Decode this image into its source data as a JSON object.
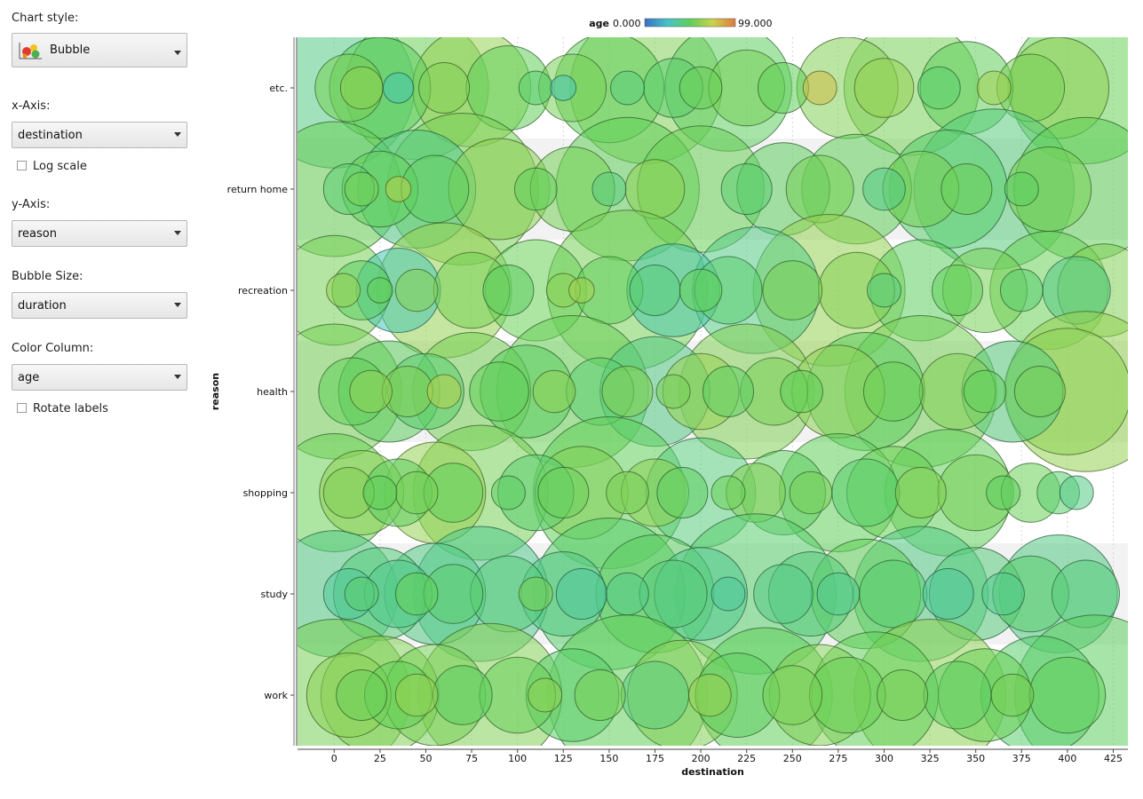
{
  "sidebar": {
    "chart_style_label": "Chart style:",
    "chart_style_value": "Bubble",
    "chart_style_icon": "bubble-chart-icon",
    "x_axis_label": "x-Axis:",
    "x_axis_value": "destination",
    "log_scale_label": "Log scale",
    "log_scale_checked": false,
    "y_axis_label": "y-Axis:",
    "y_axis_value": "reason",
    "bubble_size_label": "Bubble Size:",
    "bubble_size_value": "duration",
    "color_column_label": "Color Column:",
    "color_column_value": "age",
    "rotate_labels_label": "Rotate labels",
    "rotate_labels_checked": false
  },
  "chart_data": {
    "type": "scatter",
    "subtype": "bubble",
    "xlabel": "destination",
    "ylabel": "reason",
    "x_ticks": [
      0,
      25,
      50,
      75,
      100,
      125,
      150,
      175,
      200,
      225,
      250,
      275,
      300,
      325,
      350,
      375,
      400,
      425
    ],
    "xlim": [
      -20,
      433
    ],
    "y_categories": [
      "etc.",
      "return home",
      "recreation",
      "health",
      "shopping",
      "study",
      "work"
    ],
    "color_legend": {
      "column": "age",
      "min_label": "0.000",
      "max_label": "99.000",
      "colors": [
        "#3b6fc4",
        "#43c4c9",
        "#5fcf5a",
        "#c9d34a",
        "#e07a3f"
      ]
    },
    "series": [
      {
        "name": "etc.",
        "x": [
          0,
          8,
          15,
          25,
          35,
          45,
          60,
          75,
          95,
          110,
          125,
          130,
          150,
          160,
          170,
          185,
          200,
          215,
          225,
          245,
          265,
          280,
          300,
          315,
          330,
          345,
          360,
          380,
          395,
          410
        ],
        "size": [
          95,
          40,
          25,
          60,
          18,
          85,
          30,
          70,
          50,
          20,
          15,
          40,
          65,
          20,
          90,
          35,
          25,
          75,
          45,
          30,
          20,
          60,
          35,
          80,
          25,
          55,
          20,
          40,
          60,
          90
        ],
        "age": [
          40,
          55,
          60,
          48,
          30,
          52,
          58,
          62,
          50,
          45,
          30,
          55,
          50,
          42,
          58,
          45,
          52,
          48,
          55,
          50,
          80,
          58,
          62,
          55,
          45,
          50,
          65,
          55,
          60,
          52
        ]
      },
      {
        "name": "return home",
        "x": [
          0,
          8,
          15,
          25,
          35,
          45,
          55,
          70,
          90,
          110,
          130,
          150,
          160,
          175,
          200,
          225,
          245,
          265,
          285,
          300,
          320,
          335,
          345,
          360,
          375,
          390,
          410
        ],
        "size": [
          80,
          30,
          20,
          45,
          15,
          70,
          40,
          90,
          60,
          25,
          50,
          20,
          85,
          35,
          75,
          30,
          55,
          40,
          65,
          25,
          45,
          70,
          30,
          95,
          20,
          50,
          85
        ],
        "age": [
          52,
          45,
          55,
          50,
          70,
          40,
          48,
          55,
          60,
          50,
          55,
          42,
          50,
          60,
          52,
          45,
          48,
          55,
          50,
          40,
          55,
          45,
          52,
          42,
          48,
          55,
          50
        ]
      },
      {
        "name": "recreation",
        "x": [
          0,
          5,
          15,
          25,
          35,
          45,
          60,
          75,
          95,
          110,
          125,
          135,
          150,
          160,
          175,
          185,
          200,
          215,
          230,
          250,
          270,
          285,
          300,
          320,
          340,
          355,
          375,
          390,
          405,
          420
        ],
        "size": [
          65,
          20,
          35,
          15,
          50,
          25,
          80,
          45,
          30,
          60,
          20,
          15,
          40,
          95,
          30,
          55,
          25,
          40,
          75,
          35,
          90,
          45,
          20,
          60,
          30,
          50,
          25,
          70,
          40,
          55
        ],
        "age": [
          55,
          62,
          48,
          50,
          30,
          58,
          62,
          55,
          48,
          52,
          60,
          65,
          50,
          55,
          42,
          32,
          50,
          45,
          40,
          55,
          62,
          58,
          42,
          48,
          50,
          55,
          45,
          52,
          40,
          58
        ]
      },
      {
        "name": "health",
        "x": [
          0,
          10,
          20,
          30,
          40,
          50,
          60,
          75,
          90,
          105,
          120,
          130,
          145,
          160,
          175,
          185,
          200,
          215,
          225,
          240,
          255,
          275,
          290,
          305,
          320,
          340,
          355,
          370,
          385,
          400,
          410
        ],
        "size": [
          80,
          40,
          25,
          60,
          30,
          45,
          20,
          70,
          35,
          55,
          25,
          90,
          40,
          30,
          65,
          20,
          45,
          30,
          80,
          40,
          25,
          55,
          70,
          35,
          90,
          45,
          25,
          60,
          30,
          75,
          95
        ],
        "age": [
          55,
          50,
          60,
          48,
          58,
          45,
          70,
          55,
          50,
          48,
          60,
          52,
          45,
          58,
          40,
          55,
          62,
          48,
          58,
          55,
          50,
          60,
          48,
          52,
          55,
          58,
          50,
          42,
          55,
          60,
          62
        ]
      },
      {
        "name": "shopping",
        "x": [
          0,
          8,
          15,
          25,
          35,
          45,
          55,
          65,
          80,
          95,
          110,
          125,
          135,
          150,
          160,
          175,
          190,
          200,
          215,
          230,
          245,
          260,
          275,
          290,
          305,
          320,
          335,
          350,
          365,
          380,
          395,
          405
        ],
        "size": [
          70,
          30,
          50,
          20,
          40,
          25,
          60,
          35,
          80,
          20,
          45,
          30,
          55,
          90,
          25,
          40,
          30,
          65,
          20,
          35,
          50,
          25,
          70,
          40,
          55,
          30,
          75,
          45,
          20,
          35,
          25,
          20
        ],
        "age": [
          52,
          58,
          60,
          50,
          48,
          55,
          62,
          50,
          55,
          48,
          45,
          52,
          58,
          50,
          55,
          60,
          48,
          42,
          52,
          58,
          48,
          55,
          50,
          45,
          52,
          58,
          50,
          55,
          48,
          52,
          45,
          40
        ]
      },
      {
        "name": "study",
        "x": [
          0,
          8,
          15,
          25,
          35,
          45,
          55,
          65,
          80,
          95,
          110,
          125,
          135,
          150,
          160,
          175,
          185,
          200,
          215,
          230,
          245,
          260,
          275,
          290,
          305,
          320,
          335,
          350,
          365,
          380,
          395,
          410
        ],
        "size": [
          75,
          30,
          20,
          55,
          40,
          25,
          60,
          35,
          80,
          45,
          20,
          50,
          30,
          90,
          25,
          70,
          40,
          55,
          20,
          95,
          35,
          50,
          25,
          65,
          40,
          80,
          30,
          55,
          25,
          45,
          70,
          40
        ],
        "age": [
          40,
          35,
          45,
          42,
          38,
          50,
          40,
          45,
          38,
          42,
          55,
          40,
          35,
          45,
          40,
          48,
          42,
          38,
          35,
          45,
          40,
          42,
          38,
          50,
          45,
          40,
          35,
          42,
          38,
          45,
          40,
          42
        ]
      },
      {
        "name": "work",
        "x": [
          0,
          8,
          15,
          25,
          35,
          45,
          55,
          70,
          85,
          100,
          115,
          130,
          145,
          160,
          175,
          190,
          205,
          220,
          235,
          250,
          265,
          280,
          295,
          310,
          325,
          340,
          355,
          370,
          385,
          400,
          415
        ],
        "size": [
          90,
          50,
          30,
          70,
          40,
          25,
          60,
          35,
          85,
          45,
          20,
          55,
          30,
          95,
          40,
          65,
          25,
          50,
          80,
          35,
          60,
          45,
          75,
          30,
          90,
          40,
          55,
          25,
          70,
          45,
          95
        ],
        "age": [
          55,
          60,
          52,
          58,
          50,
          62,
          55,
          48,
          58,
          52,
          60,
          45,
          55,
          50,
          42,
          58,
          62,
          48,
          50,
          55,
          58,
          52,
          50,
          55,
          60,
          48,
          52,
          55,
          45,
          50,
          48
        ]
      }
    ]
  }
}
